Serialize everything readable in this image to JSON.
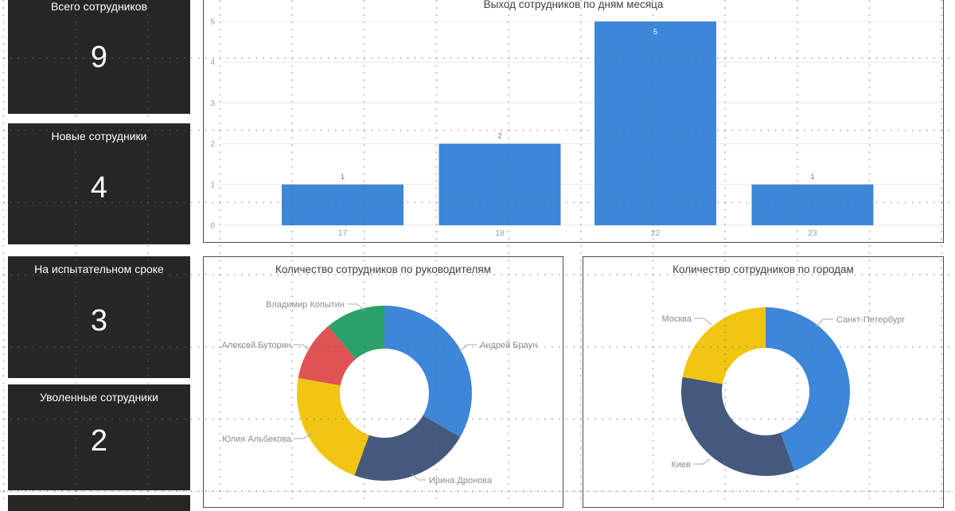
{
  "kpi_cards": [
    {
      "title": "Всего сотрудников",
      "value": "9"
    },
    {
      "title": "Новые сотрудники",
      "value": "4"
    },
    {
      "title": "На испытательном сроке",
      "value": "3"
    },
    {
      "title": "Уволенные сотрудники",
      "value": "2"
    }
  ],
  "colors": {
    "card_background": "#272625",
    "bar_blue": "#3E86D8",
    "navy": "#44597D",
    "yellow": "#F2C512",
    "red": "#DF5353",
    "green": "#2BA169",
    "axis_text": "#9e9e9e",
    "gridline": "#e7e7e7",
    "label_text": "#8c8c8c",
    "title_text": "#3f3f3f"
  },
  "chart_data": [
    {
      "type": "bar",
      "title": "Выход сотрудников по дням месяца",
      "categories": [
        "17",
        "18",
        "22",
        "23"
      ],
      "values": [
        1,
        2,
        5,
        1
      ],
      "xlabel": "",
      "ylabel": "",
      "ylim": [
        0,
        5
      ],
      "yticks": [
        0,
        1,
        2,
        3,
        4,
        5
      ],
      "grid": "horizontal solid light-gray",
      "legend": "off",
      "data_labels": [
        1,
        2,
        5,
        1
      ],
      "bar_color": "#3E86D8"
    },
    {
      "type": "pie",
      "subtype": "donut",
      "title": "Количество сотрудников по руководителям",
      "legend": "off",
      "label_style": "outside callout lines",
      "slices": [
        {
          "label": "Андрей Браун",
          "value": 3,
          "color": "#3E86D8"
        },
        {
          "label": "Ирина Дронова",
          "value": 2,
          "color": "#44597D"
        },
        {
          "label": "Юлия Альбекова",
          "value": 2,
          "color": "#F2C512"
        },
        {
          "label": "Алексей Буторин",
          "value": 1,
          "color": "#DF5353"
        },
        {
          "label": "Владимир Копытин",
          "value": 1,
          "color": "#2BA169"
        }
      ]
    },
    {
      "type": "pie",
      "subtype": "donut",
      "title": "Количество сотрудников по городам",
      "legend": "off",
      "label_style": "outside callout lines",
      "slices": [
        {
          "label": "Санкт-Петербург",
          "value": 4,
          "color": "#3E86D8"
        },
        {
          "label": "Киев",
          "value": 3,
          "color": "#44597D"
        },
        {
          "label": "Москва",
          "value": 2,
          "color": "#F2C512"
        }
      ]
    }
  ]
}
